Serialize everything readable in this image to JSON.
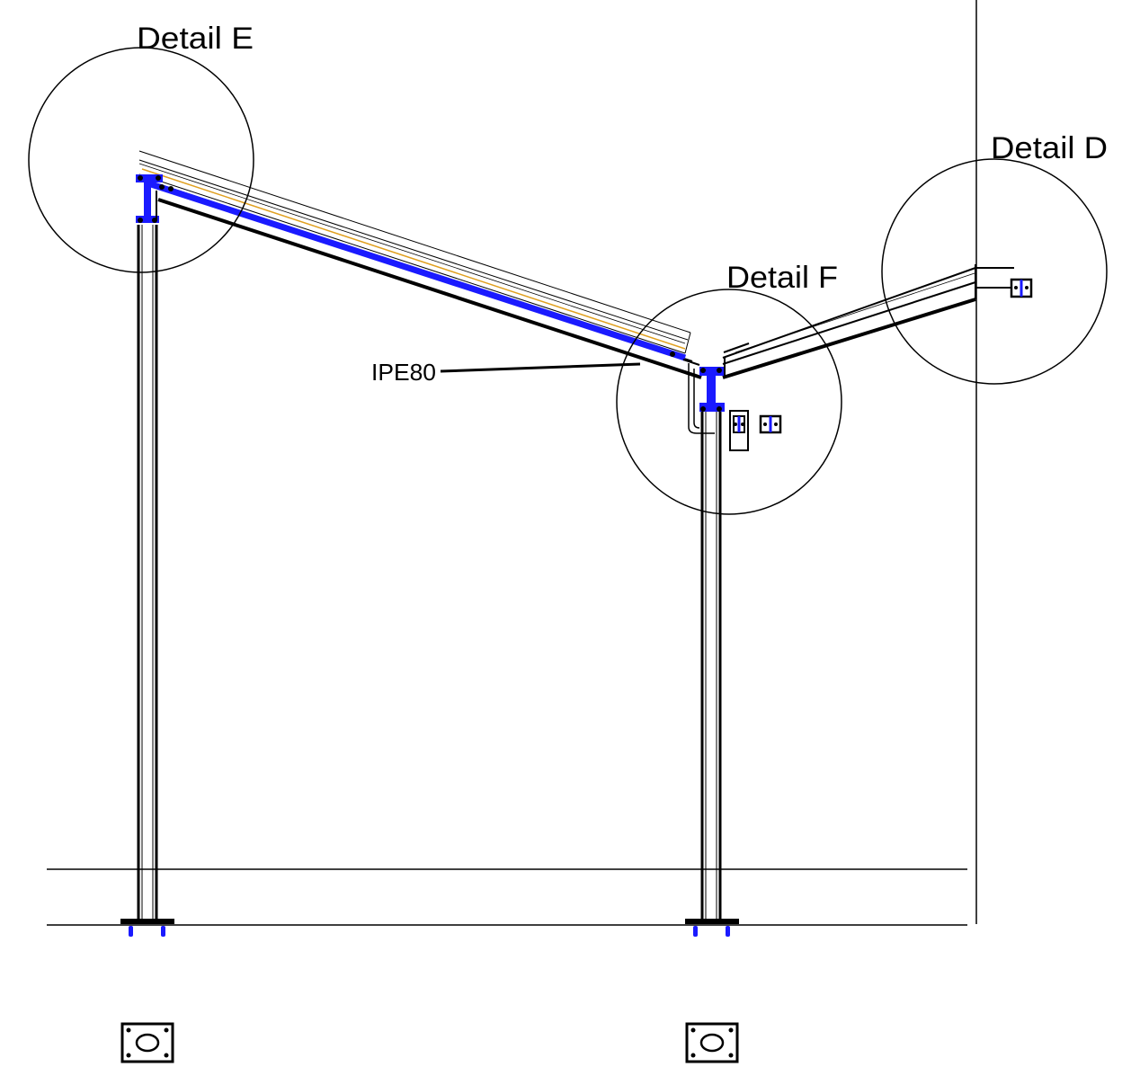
{
  "labels": {
    "detail_e": "Detail E",
    "detail_d": "Detail D",
    "detail_f": "Detail F",
    "beam": "IPE80"
  },
  "colors": {
    "line": "#000000",
    "steel_blue": "#1a1aff",
    "accent_orange": "#e0a020"
  }
}
